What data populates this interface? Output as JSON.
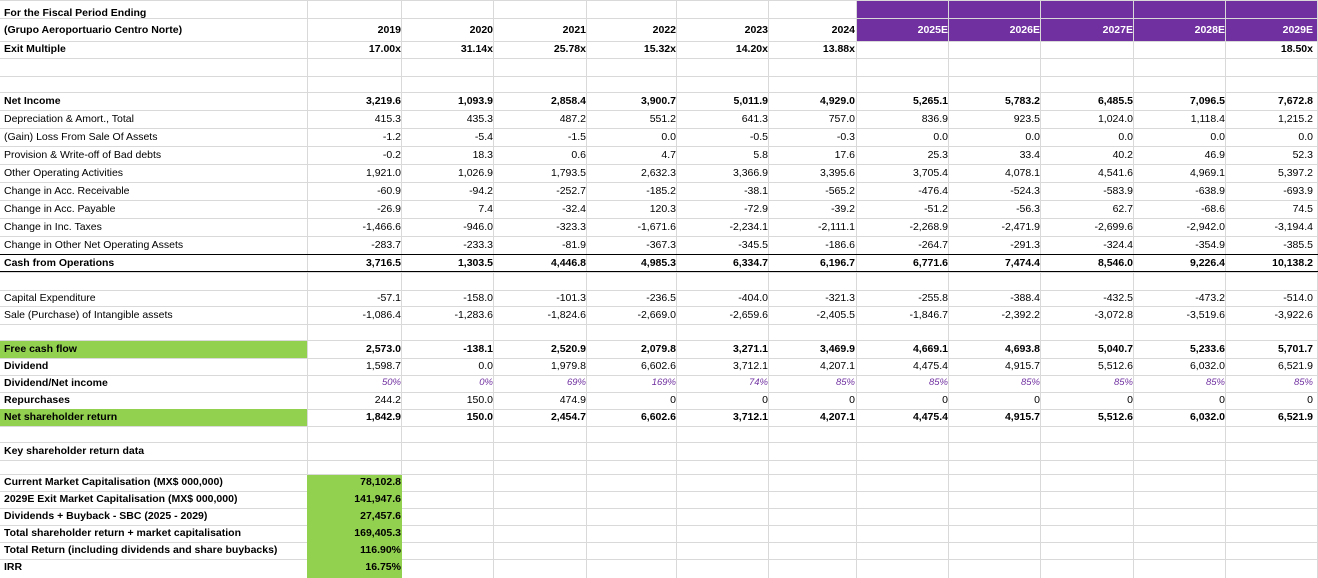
{
  "header": {
    "line1": "For the Fiscal Period Ending",
    "line2": "(Grupo Aeroportuario Centro Norte)",
    "years": [
      "2019",
      "2020",
      "2021",
      "2022",
      "2023",
      "2024",
      "2025E",
      "2026E",
      "2027E",
      "2028E",
      "2029E"
    ],
    "exit_label": "Exit Multiple",
    "exit_values": [
      "17.00x",
      "31.14x",
      "25.78x",
      "15.32x",
      "14.20x",
      "13.88x",
      "",
      "",
      "",
      "",
      "18.50x"
    ]
  },
  "ops": [
    {
      "label": "Net Income",
      "bold": true,
      "values": [
        "3,219.6",
        "1,093.9",
        "2,858.4",
        "3,900.7",
        "5,011.9",
        "4,929.0",
        "5,265.1",
        "5,783.2",
        "6,485.5",
        "7,096.5",
        "7,672.8"
      ]
    },
    {
      "label": "Depreciation & Amort., Total",
      "values": [
        "415.3",
        "435.3",
        "487.2",
        "551.2",
        "641.3",
        "757.0",
        "836.9",
        "923.5",
        "1,024.0",
        "1,118.4",
        "1,215.2"
      ]
    },
    {
      "label": "(Gain) Loss From Sale Of Assets",
      "values": [
        "-1.2",
        "-5.4",
        "-1.5",
        "0.0",
        "-0.5",
        "-0.3",
        "0.0",
        "0.0",
        "0.0",
        "0.0",
        "0.0"
      ]
    },
    {
      "label": "Provision & Write-off of Bad debts",
      "values": [
        "-0.2",
        "18.3",
        "0.6",
        "4.7",
        "5.8",
        "17.6",
        "25.3",
        "33.4",
        "40.2",
        "46.9",
        "52.3"
      ]
    },
    {
      "label": "Other Operating Activities",
      "values": [
        "1,921.0",
        "1,026.9",
        "1,793.5",
        "2,632.3",
        "3,366.9",
        "3,395.6",
        "3,705.4",
        "4,078.1",
        "4,541.6",
        "4,969.1",
        "5,397.2"
      ]
    },
    {
      "label": "Change in Acc. Receivable",
      "values": [
        "-60.9",
        "-94.2",
        "-252.7",
        "-185.2",
        "-38.1",
        "-565.2",
        "-476.4",
        "-524.3",
        "-583.9",
        "-638.9",
        "-693.9"
      ]
    },
    {
      "label": "Change in Acc. Payable",
      "values": [
        "-26.9",
        "7.4",
        "-32.4",
        "120.3",
        "-72.9",
        "-39.2",
        "-51.2",
        "-56.3",
        "62.7",
        "-68.6",
        "74.5"
      ]
    },
    {
      "label": "Change in Inc. Taxes",
      "values": [
        "-1,466.6",
        "-946.0",
        "-323.3",
        "-1,671.6",
        "-2,234.1",
        "-2,111.1",
        "-2,268.9",
        "-2,471.9",
        "-2,699.6",
        "-2,942.0",
        "-3,194.4"
      ]
    },
    {
      "label": "Change in Other Net Operating Assets",
      "values": [
        "-283.7",
        "-233.3",
        "-81.9",
        "-367.3",
        "-345.5",
        "-186.6",
        "-264.7",
        "-291.3",
        "-324.4",
        "-354.9",
        "-385.5"
      ]
    },
    {
      "label": "Cash from Operations",
      "bold": true,
      "values": [
        "3,716.5",
        "1,303.5",
        "4,446.8",
        "4,985.3",
        "6,334.7",
        "6,196.7",
        "6,771.6",
        "7,474.4",
        "8,546.0",
        "9,226.4",
        "10,138.2"
      ]
    }
  ],
  "capex": [
    {
      "label": "Capital Expenditure",
      "values": [
        "-57.1",
        "-158.0",
        "-101.3",
        "-236.5",
        "-404.0",
        "-321.3",
        "-255.8",
        "-388.4",
        "-432.5",
        "-473.2",
        "-514.0"
      ]
    },
    {
      "label": "Sale (Purchase) of Intangible assets",
      "values": [
        "-1,086.4",
        "-1,283.6",
        "-1,824.6",
        "-2,669.0",
        "-2,659.6",
        "-2,405.5",
        "-1,846.7",
        "-2,392.2",
        "-3,072.8",
        "-3,519.6",
        "-3,922.6"
      ]
    }
  ],
  "fcf": [
    {
      "label": "Free cash flow",
      "bold": true,
      "green": true,
      "values": [
        "2,573.0",
        "-138.1",
        "2,520.9",
        "2,079.8",
        "3,271.1",
        "3,469.9",
        "4,669.1",
        "4,693.8",
        "5,040.7",
        "5,233.6",
        "5,701.7"
      ]
    },
    {
      "label": "Dividend",
      "bold": true,
      "values": [
        "1,598.7",
        "0.0",
        "1,979.8",
        "6,602.6",
        "3,712.1",
        "4,207.1",
        "4,475.4",
        "4,915.7",
        "5,512.6",
        "6,032.0",
        "6,521.9"
      ]
    },
    {
      "label": "Dividend/Net income",
      "bold": true,
      "pct": true,
      "values": [
        "50%",
        "0%",
        "69%",
        "169%",
        "74%",
        "85%",
        "85%",
        "85%",
        "85%",
        "85%",
        "85%"
      ]
    },
    {
      "label": "Repurchases",
      "bold": true,
      "values": [
        "244.2",
        "150.0",
        "474.9",
        "0",
        "0",
        "0",
        "0",
        "0",
        "0",
        "0",
        "0"
      ]
    },
    {
      "label": "Net shareholder return",
      "bold": true,
      "green": true,
      "values": [
        "1,842.9",
        "150.0",
        "2,454.7",
        "6,602.6",
        "3,712.1",
        "4,207.1",
        "4,475.4",
        "4,915.7",
        "5,512.6",
        "6,032.0",
        "6,521.9"
      ]
    }
  ],
  "key": {
    "title": "Key shareholder return data",
    "rows": [
      {
        "label": "Current Market Capitalisation (MX$ 000,000)",
        "value": "78,102.8"
      },
      {
        "label": "2029E Exit Market Capitalisation (MX$ 000,000)",
        "value": "141,947.6"
      },
      {
        "label": "Dividends + Buyback - SBC (2025 - 2029)",
        "value": "27,457.6"
      },
      {
        "label": "Total shareholder return + market capitalisation",
        "value": "169,405.3"
      },
      {
        "label": "Total Return (including dividends and share buybacks)",
        "value": "116.90%"
      },
      {
        "label": "IRR",
        "value": "16.75%"
      }
    ]
  },
  "colors": {
    "purple": "#7030a0",
    "green": "#92d050"
  }
}
